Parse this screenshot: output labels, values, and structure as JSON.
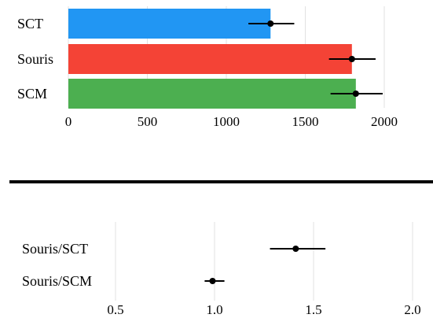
{
  "chart_data": [
    {
      "type": "bar",
      "orientation": "horizontal",
      "categories": [
        "SCT",
        "Souris",
        "SCM"
      ],
      "values": [
        1280,
        1795,
        1820
      ],
      "error_low": [
        1140,
        1650,
        1660
      ],
      "error_high": [
        1430,
        1945,
        1990
      ],
      "colors": [
        "#2196F3",
        "#F44336",
        "#4CAF50"
      ],
      "xlim": [
        0,
        2100
      ],
      "xticks": [
        "0",
        "500",
        "1000",
        "1500",
        "2000"
      ],
      "xtick_values": [
        0,
        500,
        1000,
        1500,
        2000
      ],
      "grid": "vertical",
      "xlabel": "",
      "ylabel": "",
      "title": ""
    },
    {
      "type": "scatter",
      "subtype": "point-with-interval",
      "categories": [
        "Souris/SCT",
        "Souris/SCM"
      ],
      "values": [
        1.41,
        0.99
      ],
      "error_low": [
        1.28,
        0.95
      ],
      "error_high": [
        1.56,
        1.05
      ],
      "xlim": [
        0.42,
        2.05
      ],
      "xticks": [
        "0.5",
        "1.0",
        "1.5",
        "2.0"
      ],
      "xtick_values": [
        0.5,
        1.0,
        1.5,
        2.0
      ],
      "grid": "vertical",
      "xlabel": "",
      "ylabel": "",
      "title": ""
    }
  ]
}
